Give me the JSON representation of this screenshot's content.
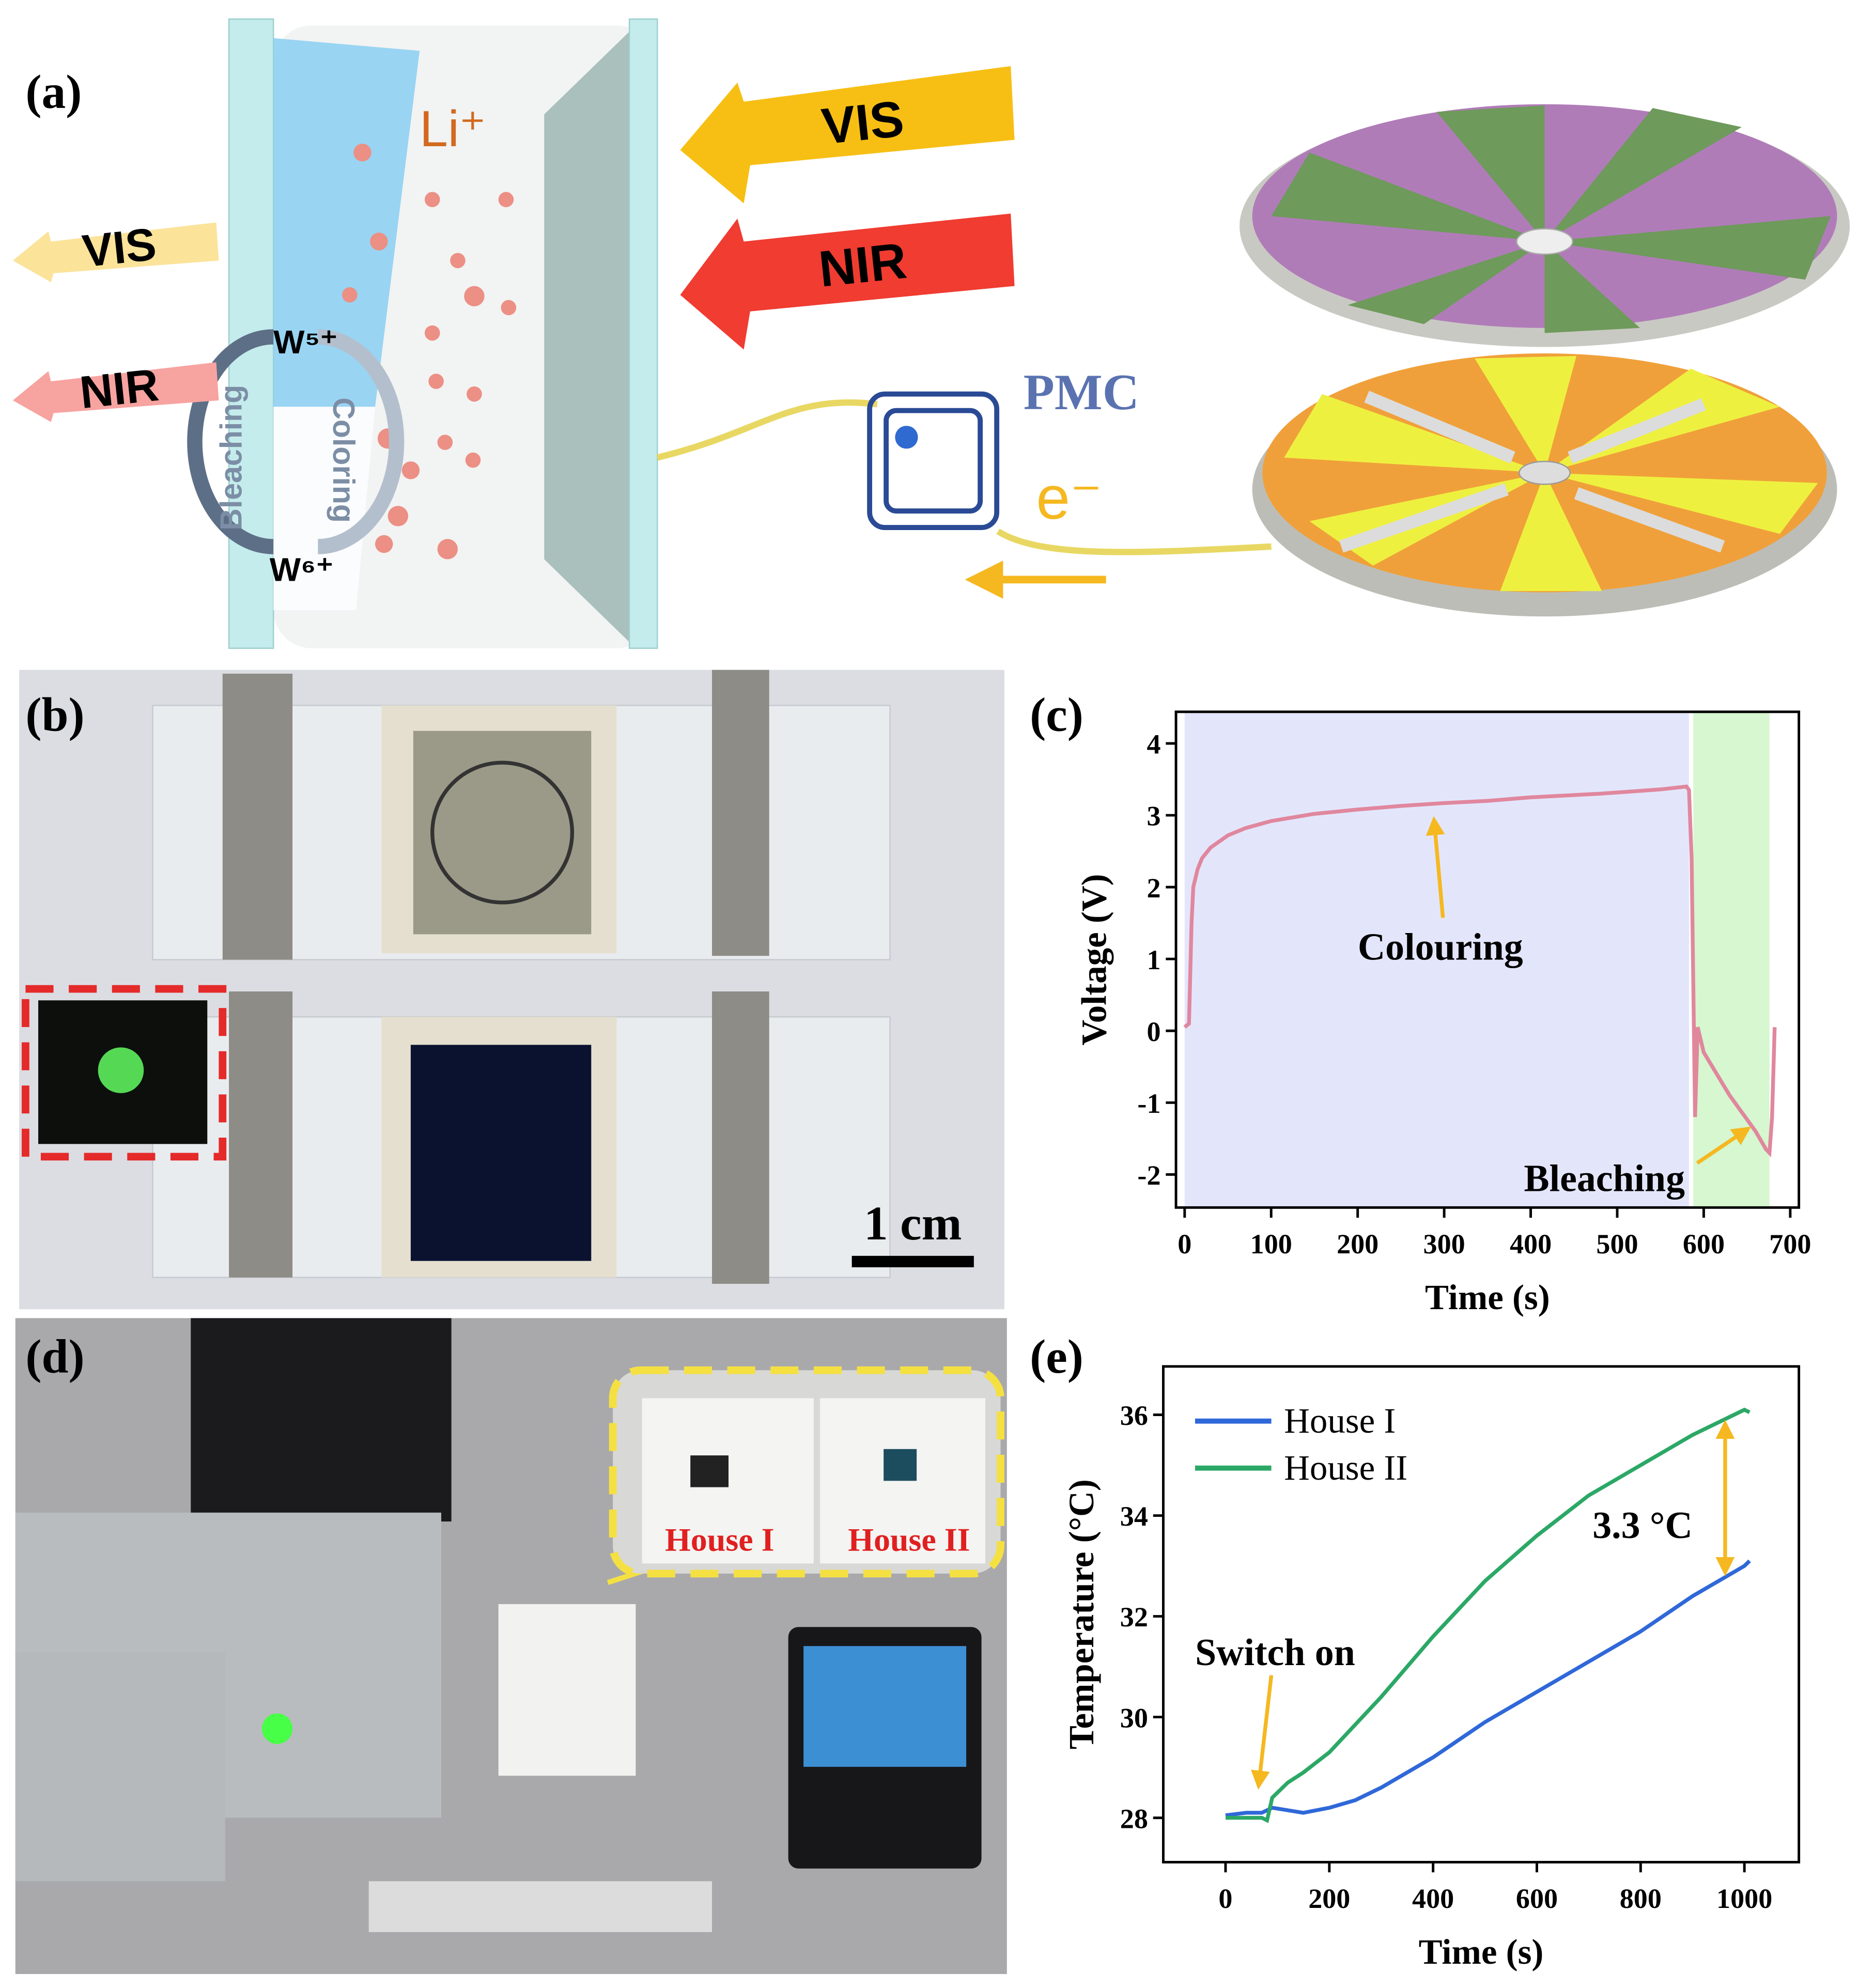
{
  "panel_labels": [
    "(a)",
    "(b)",
    "(c)",
    "(d)",
    "(e)"
  ],
  "panel_a": {
    "ion": "Li⁺",
    "vis_in": "VIS",
    "nir_in": "NIR",
    "vis_out": "VIS",
    "nir_out": "NIR",
    "w5": "W⁵⁺",
    "w6": "W⁶⁺",
    "bleaching": "Bleaching",
    "coloring": "Coloring",
    "pmc": "PMC",
    "electron": "e⁻"
  },
  "panel_b": {
    "scale_bar": "1 cm"
  },
  "panel_d": {
    "house1": "House I",
    "house2": "House II"
  },
  "chart_data": [
    {
      "type": "line",
      "x_label": "Time (s)",
      "y_label": "Voltage (V)",
      "color": "#e0879e",
      "x": [
        0,
        5,
        8,
        10,
        15,
        20,
        30,
        50,
        70,
        100,
        150,
        200,
        250,
        300,
        350,
        400,
        480,
        550,
        580,
        583,
        586,
        590,
        593,
        600,
        615,
        630,
        645,
        660,
        672,
        676,
        679,
        682
      ],
      "values": [
        0.05,
        0.1,
        1.5,
        2.0,
        2.25,
        2.4,
        2.55,
        2.72,
        2.82,
        2.92,
        3.02,
        3.08,
        3.13,
        3.17,
        3.2,
        3.25,
        3.3,
        3.36,
        3.4,
        3.35,
        2.4,
        -1.2,
        0.05,
        -0.3,
        -0.6,
        -0.9,
        -1.15,
        -1.4,
        -1.65,
        -1.7,
        -1.2,
        0.05
      ],
      "xlim": [
        -10,
        710
      ],
      "ylim": [
        -2.46,
        4.44
      ],
      "xticks": [
        0,
        100,
        200,
        300,
        400,
        500,
        600,
        700
      ],
      "yticks": [
        -2,
        -1,
        0,
        1,
        2,
        3,
        4
      ],
      "shaded_regions": [
        {
          "x": [
            0,
            583
          ],
          "color": "#e3e6fb"
        },
        {
          "x": [
            588,
            676
          ],
          "color": "#d6f7cf"
        }
      ],
      "annotations": [
        "Colouring",
        "Bleaching"
      ]
    },
    {
      "type": "line",
      "x_label": "Time (s)",
      "y_label": "Temperature (°C)",
      "x": [
        0,
        40,
        70,
        80,
        90,
        120,
        150,
        200,
        250,
        300,
        350,
        400,
        450,
        500,
        550,
        600,
        650,
        700,
        750,
        800,
        850,
        900,
        950,
        1000,
        1010
      ],
      "series": [
        {
          "name": "House I",
          "color": "#2f68d8",
          "values": [
            28.05,
            28.1,
            28.1,
            28.15,
            28.2,
            28.15,
            28.1,
            28.2,
            28.35,
            28.6,
            28.9,
            29.2,
            29.55,
            29.9,
            30.2,
            30.5,
            30.8,
            31.1,
            31.4,
            31.7,
            32.05,
            32.4,
            32.7,
            33.0,
            33.1
          ]
        },
        {
          "name": "House II",
          "color": "#2ca866",
          "values": [
            28.0,
            28.0,
            28.0,
            27.95,
            28.4,
            28.7,
            28.9,
            29.3,
            29.85,
            30.4,
            31.0,
            31.6,
            32.15,
            32.7,
            33.15,
            33.6,
            34.0,
            34.4,
            34.7,
            35.0,
            35.3,
            35.6,
            35.85,
            36.1,
            36.05
          ]
        }
      ],
      "xlim": [
        -120,
        1105
      ],
      "ylim": [
        27.12,
        36.96
      ],
      "xticks": [
        0,
        200,
        400,
        600,
        800,
        1000
      ],
      "yticks": [
        28,
        30,
        32,
        34,
        36
      ],
      "legend": "upper left",
      "annotations": [
        "3.3 °C",
        "Switch on"
      ]
    }
  ]
}
